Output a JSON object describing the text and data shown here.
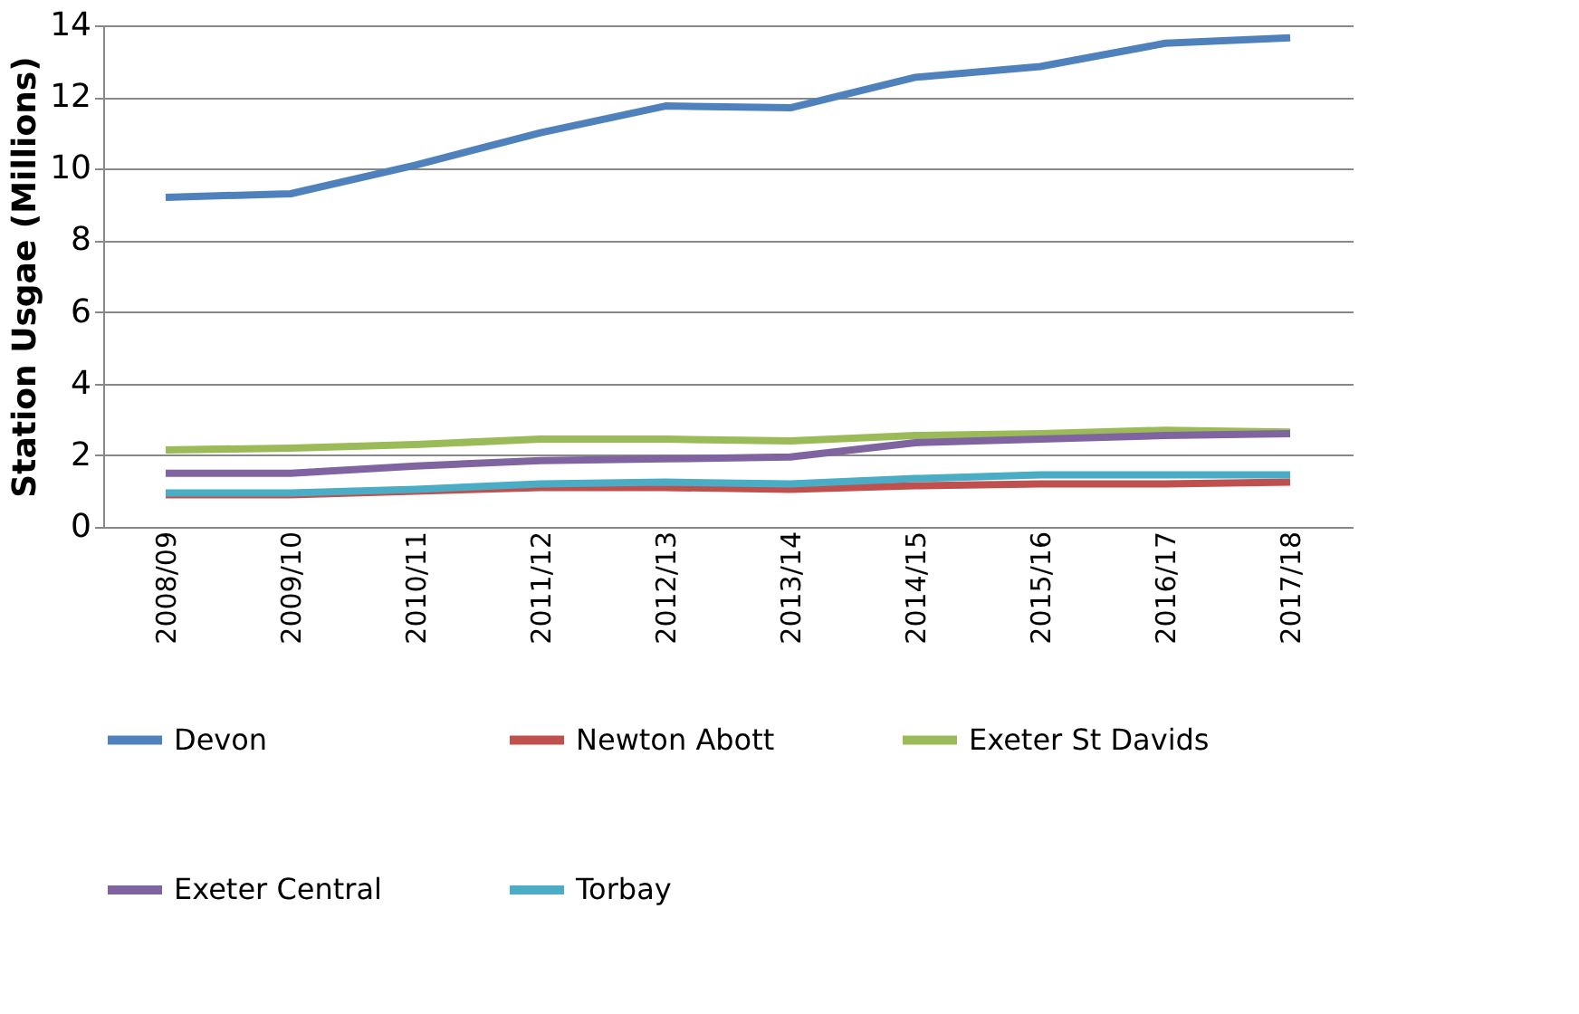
{
  "chart_data": {
    "type": "line",
    "ylabel": "Station Usgae (Millions)",
    "categories": [
      "2008/09",
      "2009/10",
      "2010/11",
      "2011/12",
      "2012/13",
      "2013/14",
      "2014/15",
      "2015/16",
      "2016/17",
      "2017/18"
    ],
    "ylim": [
      0,
      14
    ],
    "yticks": [
      0,
      2,
      4,
      6,
      8,
      10,
      12,
      14
    ],
    "grid": "y",
    "legend": "bottom",
    "line_style": "solid",
    "marker": "none",
    "series": [
      {
        "name": "Devon",
        "color": "#4f81bd",
        "values": [
          9.2,
          9.3,
          10.1,
          11.0,
          11.75,
          11.7,
          12.55,
          12.85,
          13.5,
          13.65
        ]
      },
      {
        "name": "Newton Abott",
        "color": "#c0504d",
        "values": [
          0.9,
          0.9,
          1.0,
          1.1,
          1.1,
          1.05,
          1.15,
          1.2,
          1.2,
          1.25
        ]
      },
      {
        "name": "Exeter St Davids",
        "color": "#9bbb59",
        "values": [
          2.15,
          2.2,
          2.3,
          2.45,
          2.45,
          2.4,
          2.55,
          2.6,
          2.7,
          2.65
        ]
      },
      {
        "name": "Exeter Central",
        "color": "#8064a2",
        "values": [
          1.5,
          1.5,
          1.7,
          1.85,
          1.9,
          1.95,
          2.35,
          2.45,
          2.55,
          2.6
        ]
      },
      {
        "name": "Torbay",
        "color": "#4bacc6",
        "values": [
          0.95,
          0.95,
          1.05,
          1.2,
          1.25,
          1.2,
          1.35,
          1.45,
          1.45,
          1.45
        ]
      }
    ]
  }
}
